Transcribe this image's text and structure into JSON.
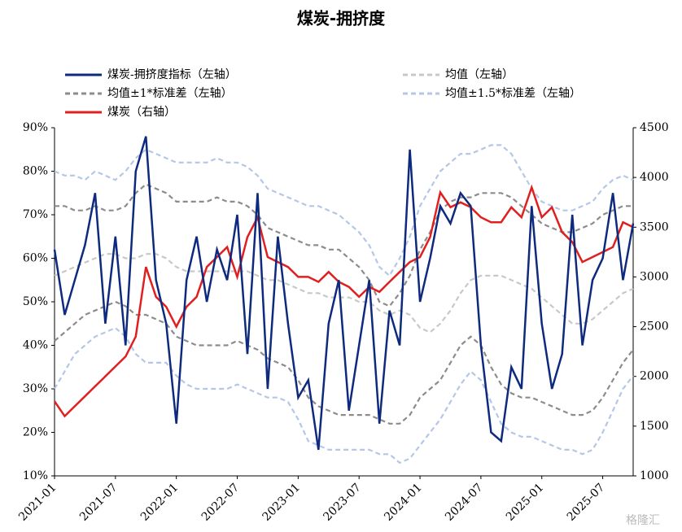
{
  "chart_data": {
    "type": "line",
    "title": "煤炭-拥挤度",
    "watermark": "格隆汇",
    "x": [
      "2021-01",
      "2021-02",
      "2021-03",
      "2021-04",
      "2021-05",
      "2021-06",
      "2021-07",
      "2021-08",
      "2021-09",
      "2021-10",
      "2021-11",
      "2021-12",
      "2022-01",
      "2022-02",
      "2022-03",
      "2022-04",
      "2022-05",
      "2022-06",
      "2022-07",
      "2022-08",
      "2022-09",
      "2022-10",
      "2022-11",
      "2022-12",
      "2023-01",
      "2023-02",
      "2023-03",
      "2023-04",
      "2023-05",
      "2023-06",
      "2023-07",
      "2023-08",
      "2023-09",
      "2023-10",
      "2023-11",
      "2023-12",
      "2024-01",
      "2024-02",
      "2024-03",
      "2024-04",
      "2024-05",
      "2024-06",
      "2024-07",
      "2024-08",
      "2024-09",
      "2024-10",
      "2024-11",
      "2024-12",
      "2025-01",
      "2025-02",
      "2025-03",
      "2025-04",
      "2025-05",
      "2025-06",
      "2025-07",
      "2025-08",
      "2025-09",
      "2025-10"
    ],
    "xticks": [
      "2021-01",
      "2021-07",
      "2022-01",
      "2022-07",
      "2023-01",
      "2023-07",
      "2024-01",
      "2024-07",
      "2025-01",
      "2025-07"
    ],
    "ylim": [
      10,
      90
    ],
    "yticks": [
      {
        "value": 10,
        "label": "10%"
      },
      {
        "value": 20,
        "label": "20%"
      },
      {
        "value": 30,
        "label": "30%"
      },
      {
        "value": 40,
        "label": "40%"
      },
      {
        "value": 50,
        "label": "50%"
      },
      {
        "value": 60,
        "label": "60%"
      },
      {
        "value": 70,
        "label": "70%"
      },
      {
        "value": 80,
        "label": "80%"
      },
      {
        "value": 90,
        "label": "90%"
      }
    ],
    "y2lim": [
      1000,
      4500
    ],
    "y2ticks": [
      1000,
      1500,
      2000,
      2500,
      3000,
      3500,
      4000,
      4500
    ],
    "series": [
      {
        "name": "煤炭-拥挤度指标（左轴）",
        "color": "#0e2a7e",
        "dash": "solid",
        "values": [
          62,
          47,
          55,
          63,
          75,
          45,
          65,
          40,
          80,
          88,
          55,
          45,
          22,
          55,
          65,
          50,
          62,
          55,
          70,
          38,
          75,
          30,
          65,
          45,
          28,
          32,
          16,
          45,
          55,
          25,
          40,
          55,
          22,
          48,
          40,
          85,
          50,
          60,
          72,
          68,
          75,
          72,
          40,
          20,
          18,
          35,
          30,
          72,
          45,
          30,
          38,
          70,
          40,
          55,
          60,
          75,
          55,
          68
        ]
      },
      {
        "name": "均值（左轴）",
        "color": "#c8c8c8",
        "dash": "dashed",
        "values": [
          56,
          57,
          58,
          59,
          60,
          61,
          61,
          60,
          60,
          61,
          61,
          60,
          58,
          57,
          57,
          57,
          57,
          57,
          57,
          57,
          56,
          55,
          55,
          54,
          53,
          52,
          52,
          51,
          51,
          51,
          50,
          50,
          48,
          47,
          48,
          47,
          44,
          43,
          45,
          48,
          52,
          55,
          56,
          56,
          56,
          55,
          54,
          53,
          51,
          49,
          47,
          45,
          45,
          46,
          48,
          50,
          52,
          53
        ]
      },
      {
        "name": "均值±1*标准差（左轴）",
        "color": "#8c8c8c",
        "dash": "dashed",
        "upper": [
          72,
          72,
          71,
          71,
          72,
          71,
          71,
          72,
          75,
          77,
          76,
          75,
          73,
          73,
          73,
          73,
          74,
          73,
          73,
          72,
          70,
          67,
          66,
          65,
          64,
          63,
          63,
          62,
          62,
          60,
          58,
          55,
          50,
          49,
          52,
          56,
          62,
          66,
          71,
          73,
          74,
          74,
          75,
          75,
          75,
          74,
          72,
          70,
          68,
          67,
          66,
          66,
          67,
          68,
          70,
          71,
          72,
          72
        ],
        "lower": [
          41,
          43,
          45,
          47,
          48,
          49,
          50,
          49,
          47,
          47,
          46,
          45,
          42,
          41,
          40,
          40,
          40,
          40,
          41,
          40,
          39,
          37,
          36,
          35,
          32,
          28,
          26,
          25,
          24,
          24,
          24,
          24,
          23,
          22,
          22,
          24,
          28,
          30,
          32,
          36,
          40,
          42,
          40,
          35,
          31,
          29,
          28,
          28,
          27,
          26,
          25,
          24,
          24,
          25,
          28,
          32,
          36,
          39
        ]
      },
      {
        "name": "均值±1.5*标准差（左轴）",
        "color": "#b4c7e7",
        "dash": "dashed",
        "upper": [
          80,
          79,
          79,
          78,
          80,
          79,
          78,
          80,
          83,
          85,
          84,
          83,
          82,
          82,
          82,
          82,
          83,
          82,
          82,
          81,
          79,
          76,
          75,
          74,
          73,
          72,
          72,
          71,
          70,
          68,
          66,
          63,
          58,
          56,
          60,
          65,
          72,
          76,
          80,
          82,
          84,
          84,
          85,
          86,
          86,
          84,
          80,
          76,
          73,
          72,
          71,
          71,
          72,
          73,
          76,
          78,
          79,
          78
        ],
        "lower": [
          30,
          34,
          38,
          40,
          42,
          43,
          44,
          42,
          38,
          36,
          36,
          36,
          33,
          31,
          30,
          30,
          30,
          30,
          31,
          30,
          29,
          28,
          28,
          27,
          23,
          18,
          17,
          16,
          16,
          16,
          16,
          16,
          15,
          15,
          13,
          14,
          17,
          20,
          23,
          27,
          31,
          34,
          32,
          27,
          22,
          20,
          19,
          19,
          18,
          17,
          16,
          16,
          15,
          16,
          20,
          25,
          30,
          33
        ]
      },
      {
        "name": "煤炭（右轴）",
        "color": "#e02020",
        "dash": "solid",
        "axis": "y2",
        "values": [
          1750,
          1600,
          1700,
          1800,
          1900,
          2000,
          2100,
          2200,
          2400,
          3100,
          2800,
          2700,
          2500,
          2700,
          2800,
          3100,
          3200,
          3300,
          3000,
          3400,
          3600,
          3200,
          3150,
          3100,
          3000,
          3000,
          2950,
          3050,
          2950,
          2900,
          2800,
          2900,
          2850,
          2950,
          3050,
          3150,
          3200,
          3400,
          3850,
          3700,
          3750,
          3700,
          3600,
          3550,
          3550,
          3700,
          3600,
          3900,
          3600,
          3700,
          3450,
          3350,
          3150,
          3200,
          3250,
          3300,
          3550,
          3500
        ]
      }
    ]
  }
}
